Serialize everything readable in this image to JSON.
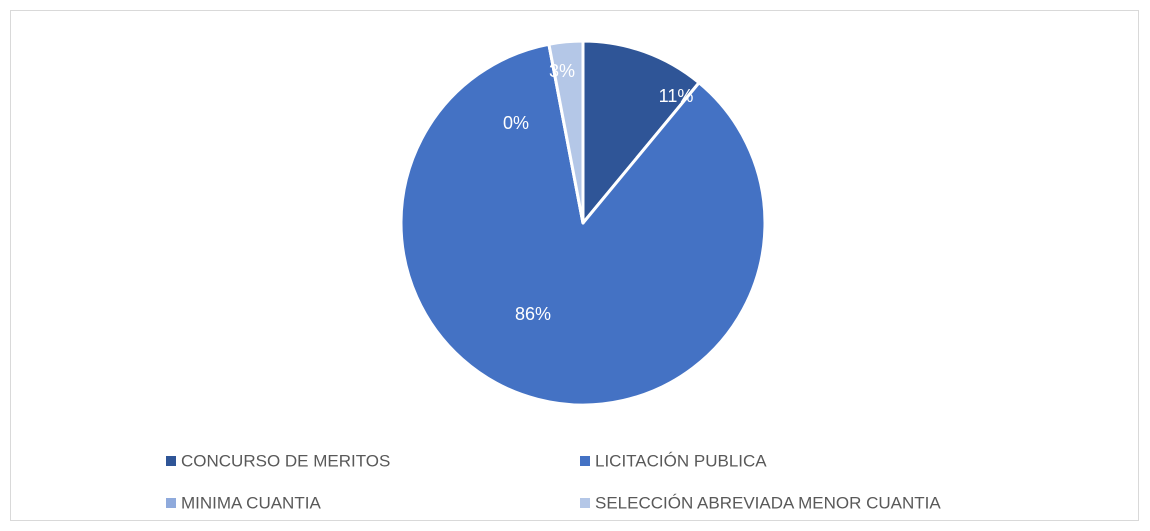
{
  "chart_data": {
    "type": "pie",
    "categories": [
      "CONCURSO DE MERITOS",
      "LICITACIÓN PUBLICA",
      "MINIMA CUANTIA",
      "SELECCIÓN ABREVIADA MENOR CUANTIA"
    ],
    "values": [
      11,
      86,
      0,
      3
    ],
    "value_labels": [
      "11%",
      "86%",
      "0%",
      "3%"
    ],
    "colors": [
      "#2f5597",
      "#4472c4",
      "#8faadc",
      "#b4c7e7"
    ],
    "legend": "bottom"
  }
}
